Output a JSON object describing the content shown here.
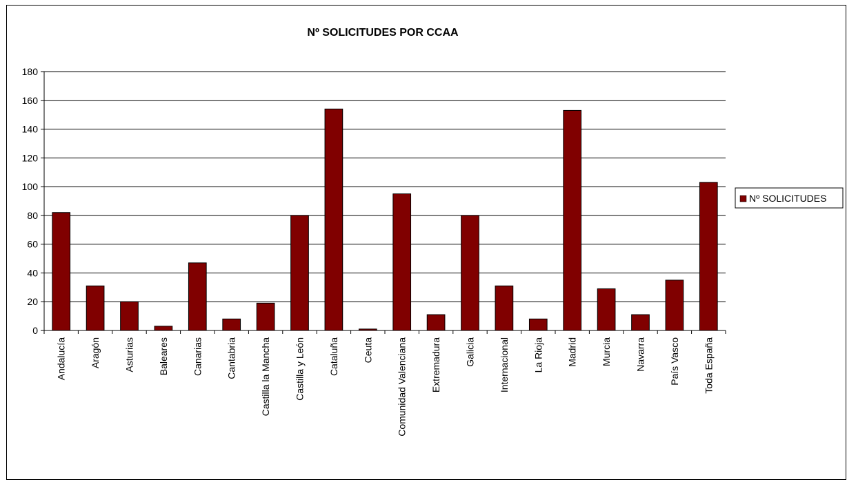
{
  "chart_data": {
    "type": "bar",
    "title": "Nº SOLICITUDES POR CCAA",
    "xlabel": "",
    "ylabel": "",
    "ylim": [
      0,
      180
    ],
    "yticks": [
      0,
      20,
      40,
      60,
      80,
      100,
      120,
      140,
      160,
      180
    ],
    "grid": true,
    "legend_position": "right",
    "bar_color": "#800000",
    "categories": [
      "Andalucía",
      "Aragón",
      "Asturias",
      "Baleares",
      "Canarias",
      "Cantabria",
      "Castilla la Mancha",
      "Castilla y León",
      "Cataluña",
      "Ceuta",
      "Comunidad Valenciana",
      "Extremadura",
      "Galicia",
      "Internacional",
      "La Rioja",
      "Madrid",
      "Murcia",
      "Navarra",
      "País Vasco",
      "Toda España"
    ],
    "series": [
      {
        "name": "Nº SOLICITUDES",
        "values": [
          82,
          31,
          20,
          3,
          47,
          8,
          19,
          80,
          154,
          1,
          95,
          11,
          80,
          31,
          8,
          153,
          29,
          11,
          35,
          103
        ]
      }
    ]
  }
}
